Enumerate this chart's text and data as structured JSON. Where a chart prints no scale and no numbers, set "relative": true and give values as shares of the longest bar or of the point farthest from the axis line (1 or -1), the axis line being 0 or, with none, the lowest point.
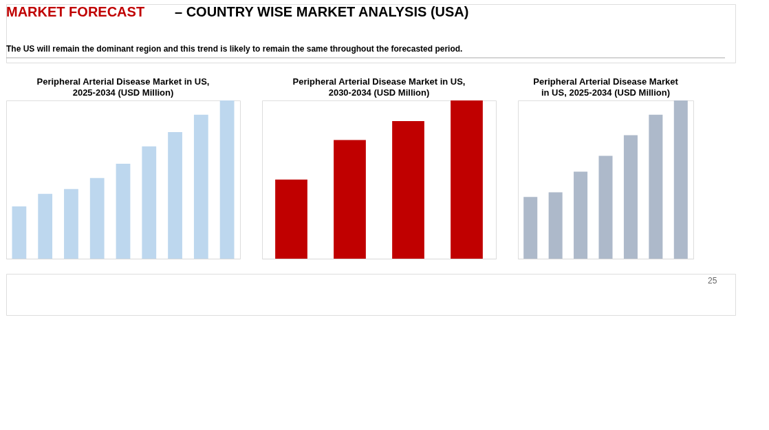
{
  "chart_data": [
    {
      "type": "bar",
      "title": "Peripheral Arterial Disease Market in US, 2025-2034 (USD Million)",
      "annotations": [
        "MARKET FORECAST",
        "–  COUNTRY WISE MARKET ANALYSIS (USA)",
        "The US will remain the dominant region and this trend is likely to remain the same throughout the forecasted period.",
        "25"
      ],
      "categories": [
        null,
        null,
        null,
        null,
        null,
        null,
        null,
        null,
        null
      ],
      "relative": true,
      "series": [
        {
          "color": "#bdd7ee",
          "values": [
            0.33,
            0.41,
            0.44,
            0.51,
            0.6,
            0.71,
            0.8,
            0.91,
            1
          ]
        }
      ]
    },
    {
      "type": "bar",
      "title": "Peripheral Arterial Disease Market in US, 2030-2034 (USD Million)",
      "categories": [
        null,
        null,
        null,
        null
      ],
      "relative": true,
      "series": [
        {
          "color": "#c00000",
          "values": [
            0.5,
            0.75,
            0.87,
            1
          ]
        }
      ]
    },
    {
      "type": "bar",
      "title": "Peripheral Arterial Disease Market in US, 2025-2034 (USD Million)",
      "categories": [
        null,
        null,
        null,
        null,
        null,
        null,
        null
      ],
      "relative": true,
      "series": [
        {
          "color": "#adb9ca",
          "values": [
            0.39,
            0.42,
            0.55,
            0.65,
            0.78,
            0.91,
            1
          ]
        }
      ]
    }
  ]
}
